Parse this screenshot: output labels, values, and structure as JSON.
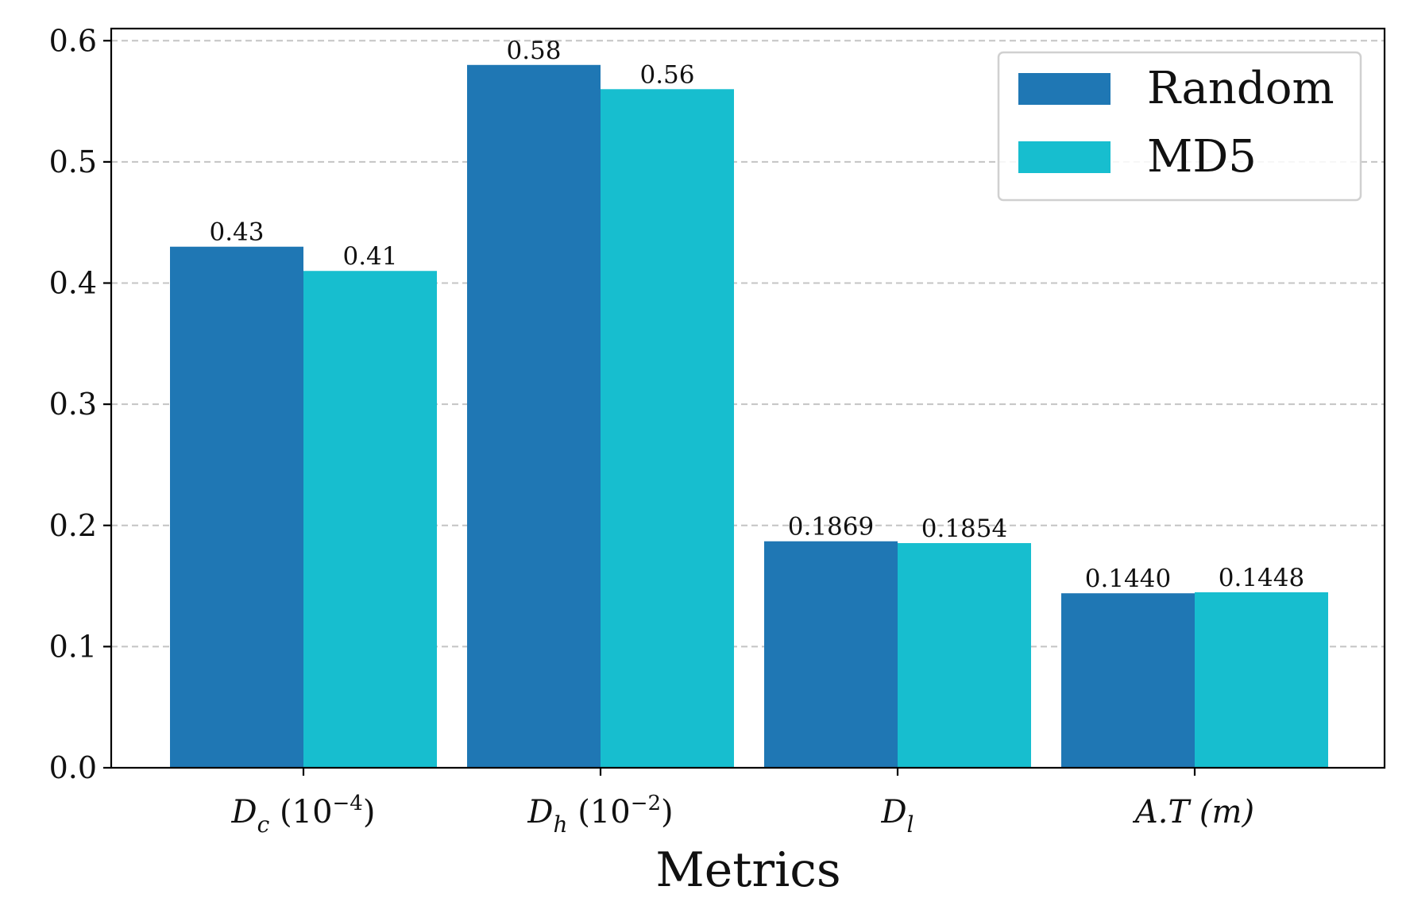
{
  "chart_data": {
    "type": "bar",
    "categories": [
      "D_c (10^-4)",
      "D_h (10^-2)",
      "D_l",
      "A.T (m)"
    ],
    "category_labels": [
      {
        "main": "D",
        "sub": "c",
        "sup_prefix": " (10",
        "sup": "−4",
        "suffix": ")"
      },
      {
        "main": "D",
        "sub": "h",
        "sup_prefix": " (10",
        "sup": "−2",
        "suffix": ")"
      },
      {
        "main": "D",
        "sub": "l",
        "sup_prefix": "",
        "sup": "",
        "suffix": ""
      },
      {
        "main": "A.T (m)",
        "sub": "",
        "sup_prefix": "",
        "sup": "",
        "suffix": ""
      }
    ],
    "series": [
      {
        "name": "Random",
        "color": "#1f77b4",
        "values": [
          0.43,
          0.58,
          0.1869,
          0.144
        ],
        "value_labels": [
          "0.43",
          "0.58",
          "0.1869",
          "0.1440"
        ]
      },
      {
        "name": "MD5",
        "color": "#17becf",
        "values": [
          0.41,
          0.56,
          0.1854,
          0.1448
        ],
        "value_labels": [
          "0.41",
          "0.56",
          "0.1854",
          "0.1448"
        ]
      }
    ],
    "xlabel": "Metrics",
    "ylabel": "",
    "ylim": [
      0,
      0.61
    ],
    "yticks": [
      0.0,
      0.1,
      0.2,
      0.3,
      0.4,
      0.5,
      0.6
    ],
    "ytick_labels": [
      "0.0",
      "0.1",
      "0.2",
      "0.3",
      "0.4",
      "0.5",
      "0.6"
    ],
    "grid": "y dashed",
    "legend_position": "top-right"
  }
}
